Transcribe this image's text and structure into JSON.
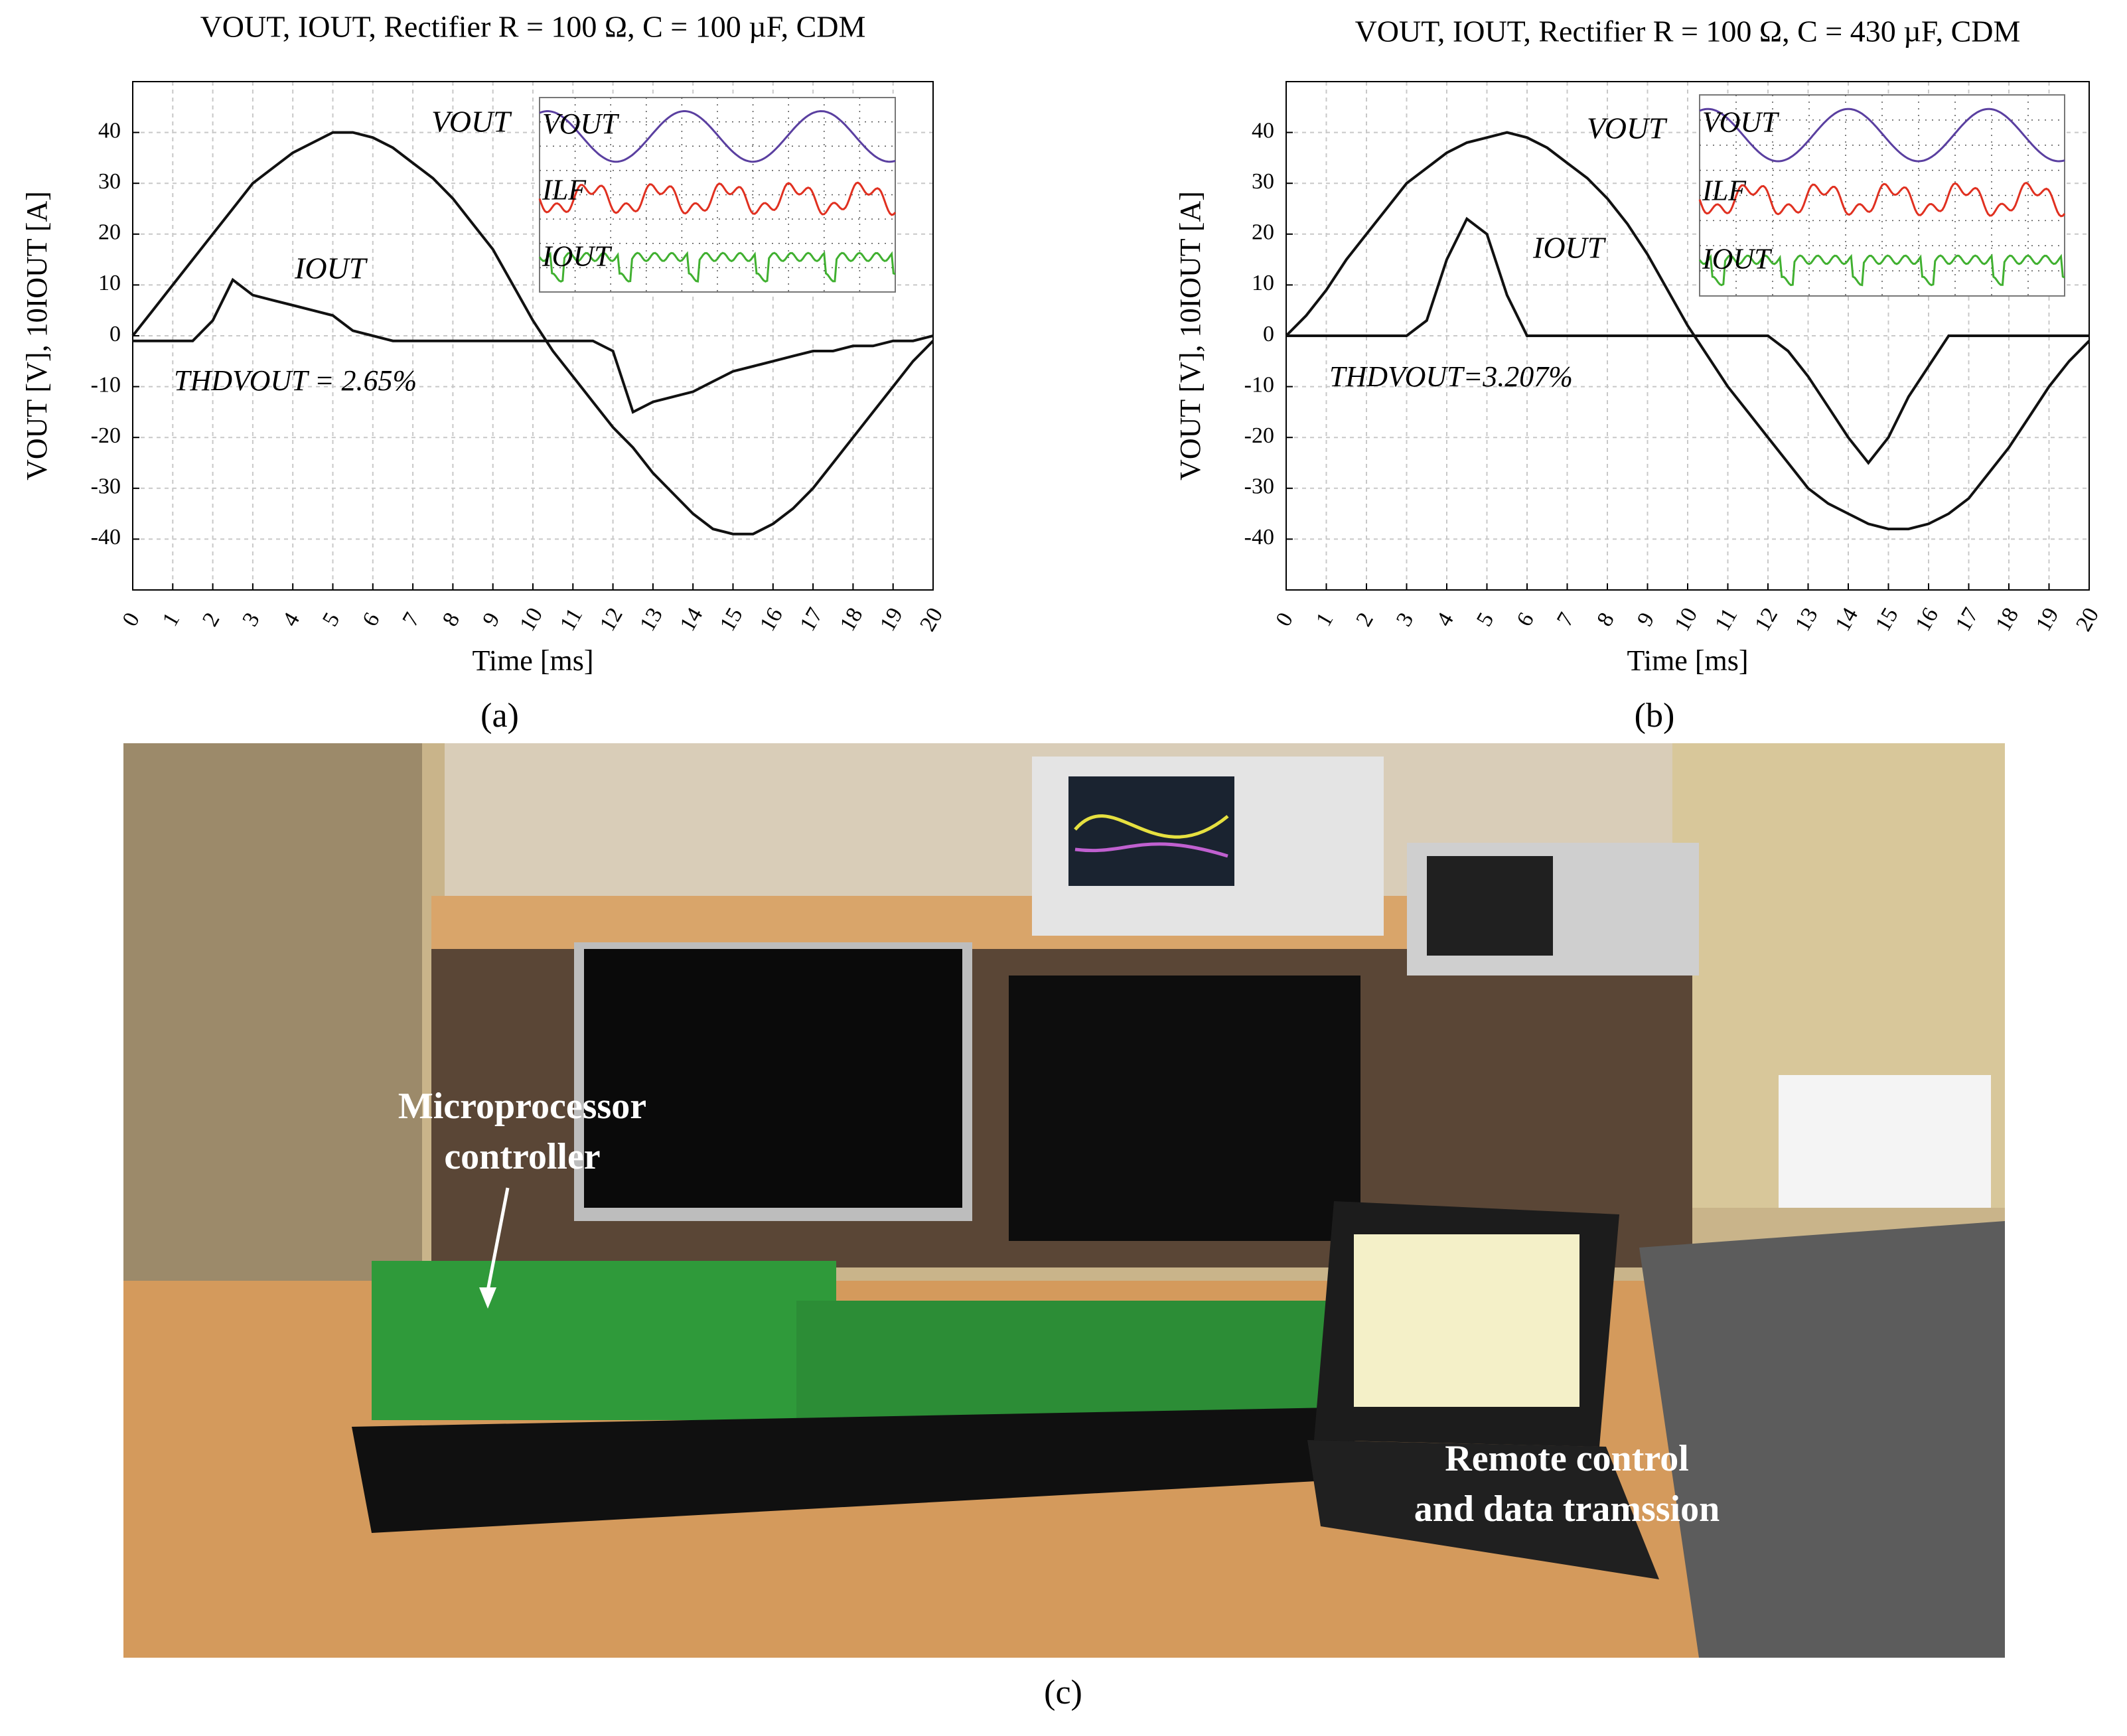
{
  "chart_data": [
    {
      "type": "line",
      "title": "VOUT, IOUT, Rectifier R = 100 Ω, C = 100 µF, CDM",
      "xlabel": "Time [ms]",
      "ylabel": "VOUT [V], 10IOUT [A]",
      "x": [
        0,
        0.5,
        1,
        1.5,
        2,
        2.5,
        3,
        3.5,
        4,
        4.5,
        5,
        5.5,
        6,
        6.5,
        7,
        7.5,
        8,
        8.5,
        9,
        9.5,
        10,
        10.5,
        11,
        11.5,
        12,
        12.5,
        13,
        13.5,
        14,
        14.5,
        15,
        15.5,
        16,
        16.5,
        17,
        17.5,
        18,
        18.5,
        19,
        19.5,
        20
      ],
      "xlim": [
        0,
        20
      ],
      "xticks": [
        0,
        1,
        2,
        3,
        4,
        5,
        6,
        7,
        8,
        9,
        10,
        11,
        12,
        13,
        14,
        15,
        16,
        17,
        18,
        19,
        20
      ],
      "ylim": [
        -50,
        50
      ],
      "yticks": [
        -40,
        -30,
        -20,
        -10,
        0,
        10,
        20,
        30,
        40
      ],
      "grid": true,
      "series": [
        {
          "name": "VOUT",
          "color": "#111111",
          "values": [
            0,
            5,
            10,
            15,
            20,
            25,
            30,
            33,
            36,
            38,
            40,
            40,
            39,
            37,
            34,
            31,
            27,
            22,
            17,
            10,
            3,
            -3,
            -8,
            -13,
            -18,
            -22,
            -27,
            -31,
            -35,
            -38,
            -39,
            -39,
            -37,
            -34,
            -30,
            -25,
            -20,
            -15,
            -10,
            -5,
            -1
          ]
        },
        {
          "name": "IOUT",
          "color": "#111111",
          "values": [
            -1,
            -1,
            -1,
            -1,
            3,
            11,
            8,
            7,
            6,
            5,
            4,
            1,
            0,
            -1,
            -1,
            -1,
            -1,
            -1,
            -1,
            -1,
            -1,
            -1,
            -1,
            -1,
            -3,
            -15,
            -13,
            -12,
            -11,
            -9,
            -7,
            -6,
            -5,
            -4,
            -3,
            -3,
            -2,
            -2,
            -1,
            -1,
            0
          ]
        }
      ],
      "annotation": "THDVOUT = 2.65%",
      "inset_labels": [
        "VOUT",
        "ILF",
        "IOUT"
      ],
      "panel_label": "(a)"
    },
    {
      "type": "line",
      "title": "VOUT, IOUT, Rectifier R = 100 Ω, C = 430 µF, CDM",
      "xlabel": "Time [ms]",
      "ylabel": "VOUT [V], 10IOUT [A]",
      "x": [
        0,
        0.5,
        1,
        1.5,
        2,
        2.5,
        3,
        3.5,
        4,
        4.5,
        5,
        5.5,
        6,
        6.5,
        7,
        7.5,
        8,
        8.5,
        9,
        9.5,
        10,
        10.5,
        11,
        11.5,
        12,
        12.5,
        13,
        13.5,
        14,
        14.5,
        15,
        15.5,
        16,
        16.5,
        17,
        17.5,
        18,
        18.5,
        19,
        19.5,
        20
      ],
      "xlim": [
        0,
        20
      ],
      "xticks": [
        0,
        1,
        2,
        3,
        4,
        5,
        6,
        7,
        8,
        9,
        10,
        11,
        12,
        13,
        14,
        15,
        16,
        17,
        18,
        19,
        20
      ],
      "ylim": [
        -50,
        50
      ],
      "yticks": [
        -40,
        -30,
        -20,
        -10,
        0,
        10,
        20,
        30,
        40
      ],
      "grid": true,
      "series": [
        {
          "name": "VOUT",
          "color": "#111111",
          "values": [
            0,
            4,
            9,
            15,
            20,
            25,
            30,
            33,
            36,
            38,
            39,
            40,
            39,
            37,
            34,
            31,
            27,
            22,
            16,
            9,
            2,
            -4,
            -10,
            -15,
            -20,
            -25,
            -30,
            -33,
            -35,
            -37,
            -38,
            -38,
            -37,
            -35,
            -32,
            -27,
            -22,
            -16,
            -10,
            -5,
            -1
          ]
        },
        {
          "name": "IOUT",
          "color": "#111111",
          "values": [
            0,
            0,
            0,
            0,
            0,
            0,
            0,
            3,
            15,
            23,
            20,
            8,
            0,
            0,
            0,
            0,
            0,
            0,
            0,
            0,
            0,
            0,
            0,
            0,
            0,
            -3,
            -8,
            -14,
            -20,
            -25,
            -20,
            -12,
            -6,
            0,
            0,
            0,
            0,
            0,
            0,
            0,
            0
          ]
        }
      ],
      "annotation": "THDVOUT=3.207%",
      "inset_labels": [
        "VOUT",
        "ILF",
        "IOUT"
      ],
      "panel_label": "(b)"
    }
  ],
  "photo": {
    "labels": [
      [
        "Microprocessor",
        "controller"
      ],
      [
        "Remote control",
        "and data tramssion"
      ]
    ],
    "panel_label": "(c)"
  }
}
